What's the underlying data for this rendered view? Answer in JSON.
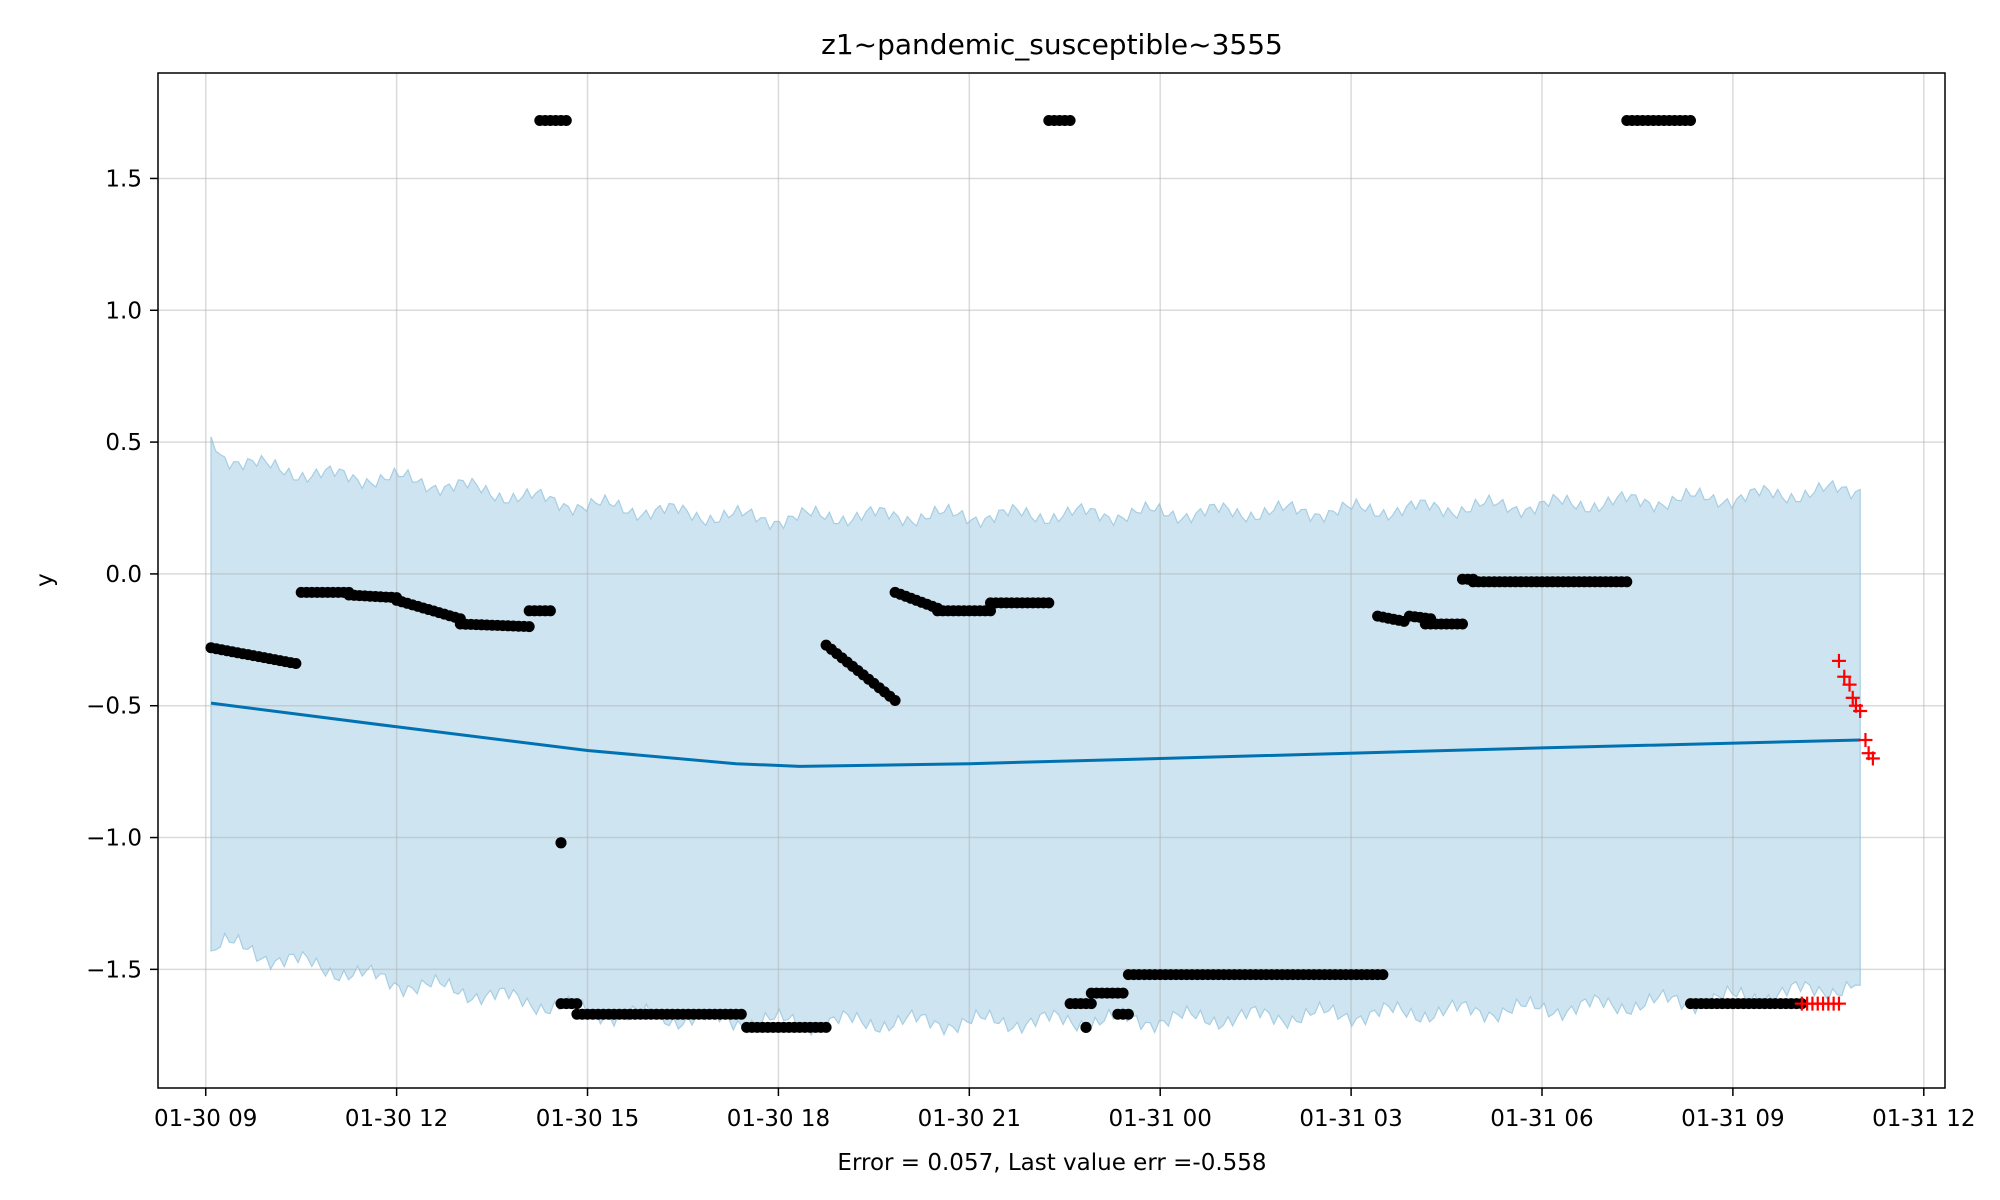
{
  "chart_data": {
    "type": "scatter",
    "title": "z1~pandemic_susceptible~3555",
    "xlabel": "Error = 0.057, Last value err =-0.558",
    "ylabel": "y",
    "xlim": [
      "2020-01-30 08:15",
      "2020-01-31 12:20"
    ],
    "ylim": [
      -1.95,
      1.9
    ],
    "grid": true,
    "x_ticks": [
      {
        "t": "2020-01-30 09:00",
        "label": "01-30 09"
      },
      {
        "t": "2020-01-30 12:00",
        "label": "01-30 12"
      },
      {
        "t": "2020-01-30 15:00",
        "label": "01-30 15"
      },
      {
        "t": "2020-01-30 18:00",
        "label": "01-30 18"
      },
      {
        "t": "2020-01-30 21:00",
        "label": "01-30 21"
      },
      {
        "t": "2020-01-31 00:00",
        "label": "01-31 00"
      },
      {
        "t": "2020-01-31 03:00",
        "label": "01-31 03"
      },
      {
        "t": "2020-01-31 06:00",
        "label": "01-31 06"
      },
      {
        "t": "2020-01-31 09:00",
        "label": "01-31 09"
      },
      {
        "t": "2020-01-31 12:00",
        "label": "01-31 12"
      }
    ],
    "y_ticks": [
      {
        "v": 1.5,
        "label": "1.5"
      },
      {
        "v": 1.0,
        "label": "1.0"
      },
      {
        "v": 0.5,
        "label": "0.5"
      },
      {
        "v": 0.0,
        "label": "0.0"
      },
      {
        "v": -0.5,
        "label": "−0.5"
      },
      {
        "v": -1.0,
        "label": "−1.0"
      },
      {
        "v": -1.5,
        "label": "−1.5"
      }
    ],
    "colors": {
      "forecast": "#0072B2",
      "band": "#A6CEE3",
      "observed": "#000000",
      "test": "#FF0000"
    },
    "forecast": {
      "name": "yhat",
      "points": [
        [
          "2020-01-30 09:05",
          -0.49
        ],
        [
          "2020-01-30 12:00",
          -0.58
        ],
        [
          "2020-01-30 15:00",
          -0.67
        ],
        [
          "2020-01-30 17:20",
          -0.72
        ],
        [
          "2020-01-30 18:20",
          -0.73
        ],
        [
          "2020-01-30 21:00",
          -0.72
        ],
        [
          "2020-01-31 00:00",
          -0.7
        ],
        [
          "2020-01-31 06:00",
          -0.66
        ],
        [
          "2020-01-31 11:00",
          -0.63
        ]
      ]
    },
    "band": {
      "upper": [
        [
          "2020-01-30 09:05",
          0.52
        ],
        [
          "2020-01-30 09:15",
          0.45
        ],
        [
          "2020-01-30 10:00",
          0.4
        ],
        [
          "2020-01-30 11:00",
          0.37
        ],
        [
          "2020-01-30 12:00",
          0.36
        ],
        [
          "2020-01-30 13:00",
          0.33
        ],
        [
          "2020-01-30 14:00",
          0.29
        ],
        [
          "2020-01-30 15:00",
          0.26
        ],
        [
          "2020-01-30 16:00",
          0.24
        ],
        [
          "2020-01-30 17:00",
          0.22
        ],
        [
          "2020-01-30 18:00",
          0.21
        ],
        [
          "2020-01-30 19:00",
          0.22
        ],
        [
          "2020-01-30 21:00",
          0.22
        ],
        [
          "2020-01-31 00:00",
          0.23
        ],
        [
          "2020-01-31 03:00",
          0.24
        ],
        [
          "2020-01-31 06:00",
          0.26
        ],
        [
          "2020-01-31 09:00",
          0.29
        ],
        [
          "2020-01-31 11:00",
          0.32
        ]
      ],
      "lower": [
        [
          "2020-01-30 09:05",
          -1.43
        ],
        [
          "2020-01-30 09:15",
          -1.4
        ],
        [
          "2020-01-30 10:00",
          -1.45
        ],
        [
          "2020-01-30 11:00",
          -1.5
        ],
        [
          "2020-01-30 12:00",
          -1.55
        ],
        [
          "2020-01-30 13:00",
          -1.58
        ],
        [
          "2020-01-30 14:00",
          -1.62
        ],
        [
          "2020-01-30 15:00",
          -1.66
        ],
        [
          "2020-01-30 16:00",
          -1.68
        ],
        [
          "2020-01-30 17:00",
          -1.69
        ],
        [
          "2020-01-30 18:00",
          -1.7
        ],
        [
          "2020-01-30 19:00",
          -1.7
        ],
        [
          "2020-01-30 21:00",
          -1.7
        ],
        [
          "2020-01-31 00:00",
          -1.69
        ],
        [
          "2020-01-31 03:00",
          -1.67
        ],
        [
          "2020-01-31 06:00",
          -1.65
        ],
        [
          "2020-01-31 09:00",
          -1.61
        ],
        [
          "2020-01-31 11:00",
          -1.56
        ]
      ]
    },
    "observed_segments": [
      {
        "from": "2020-01-30 09:05",
        "to": "2020-01-30 10:25",
        "y_start": -0.28,
        "y_end": -0.34
      },
      {
        "from": "2020-01-30 10:30",
        "to": "2020-01-30 11:15",
        "y_start": -0.07,
        "y_end": -0.07
      },
      {
        "from": "2020-01-30 11:15",
        "to": "2020-01-30 12:00",
        "y_start": -0.08,
        "y_end": -0.09
      },
      {
        "from": "2020-01-30 12:00",
        "to": "2020-01-30 13:00",
        "y_start": -0.1,
        "y_end": -0.17
      },
      {
        "from": "2020-01-30 13:00",
        "to": "2020-01-30 14:05",
        "y_start": -0.19,
        "y_end": -0.2
      },
      {
        "from": "2020-01-30 14:05",
        "to": "2020-01-30 14:25",
        "y_start": -0.14,
        "y_end": -0.14
      },
      {
        "from": "2020-01-30 14:15",
        "to": "2020-01-30 14:40",
        "y_start": 1.72,
        "y_end": 1.72
      },
      {
        "from": "2020-01-30 14:35",
        "to": "2020-01-30 14:35",
        "y_start": -1.02,
        "y_end": -1.02
      },
      {
        "from": "2020-01-30 14:35",
        "to": "2020-01-30 14:50",
        "y_start": -1.63,
        "y_end": -1.63
      },
      {
        "from": "2020-01-30 14:50",
        "to": "2020-01-30 17:25",
        "y_start": -1.67,
        "y_end": -1.67
      },
      {
        "from": "2020-01-30 17:30",
        "to": "2020-01-30 18:45",
        "y_start": -1.72,
        "y_end": -1.72
      },
      {
        "from": "2020-01-30 18:45",
        "to": "2020-01-30 19:50",
        "y_start": -0.27,
        "y_end": -0.48
      },
      {
        "from": "2020-01-30 19:50",
        "to": "2020-01-30 20:30",
        "y_start": -0.07,
        "y_end": -0.13
      },
      {
        "from": "2020-01-30 20:30",
        "to": "2020-01-30 21:20",
        "y_start": -0.14,
        "y_end": -0.14
      },
      {
        "from": "2020-01-30 21:20",
        "to": "2020-01-30 22:15",
        "y_start": -0.11,
        "y_end": -0.11
      },
      {
        "from": "2020-01-30 22:15",
        "to": "2020-01-30 22:35",
        "y_start": 1.72,
        "y_end": 1.72
      },
      {
        "from": "2020-01-30 22:35",
        "to": "2020-01-30 22:55",
        "y_start": -1.63,
        "y_end": -1.63
      },
      {
        "from": "2020-01-30 22:50",
        "to": "2020-01-30 22:50",
        "y_start": -1.72,
        "y_end": -1.72
      },
      {
        "from": "2020-01-30 22:55",
        "to": "2020-01-30 23:25",
        "y_start": -1.59,
        "y_end": -1.59
      },
      {
        "from": "2020-01-30 23:20",
        "to": "2020-01-30 23:30",
        "y_start": -1.67,
        "y_end": -1.67
      },
      {
        "from": "2020-01-30 23:30",
        "to": "2020-01-31 03:30",
        "y_start": -1.52,
        "y_end": -1.52
      },
      {
        "from": "2020-01-31 03:25",
        "to": "2020-01-31 03:50",
        "y_start": -0.16,
        "y_end": -0.18
      },
      {
        "from": "2020-01-31 03:55",
        "to": "2020-01-31 04:15",
        "y_start": -0.16,
        "y_end": -0.17
      },
      {
        "from": "2020-01-31 04:10",
        "to": "2020-01-31 04:45",
        "y_start": -0.19,
        "y_end": -0.19
      },
      {
        "from": "2020-01-31 04:45",
        "to": "2020-01-31 04:55",
        "y_start": -0.02,
        "y_end": -0.02
      },
      {
        "from": "2020-01-31 04:55",
        "to": "2020-01-31 07:20",
        "y_start": -0.03,
        "y_end": -0.03
      },
      {
        "from": "2020-01-31 07:20",
        "to": "2020-01-31 08:20",
        "y_start": 1.72,
        "y_end": 1.72
      },
      {
        "from": "2020-01-31 08:20",
        "to": "2020-01-31 10:05",
        "y_start": -1.63,
        "y_end": -1.63
      }
    ],
    "test_points": [
      [
        "2020-01-31 10:05",
        -1.63
      ],
      [
        "2020-01-31 10:10",
        -1.63
      ],
      [
        "2020-01-31 10:15",
        -1.63
      ],
      [
        "2020-01-31 10:20",
        -1.63
      ],
      [
        "2020-01-31 10:25",
        -1.63
      ],
      [
        "2020-01-31 10:30",
        -1.63
      ],
      [
        "2020-01-31 10:35",
        -1.63
      ],
      [
        "2020-01-31 10:40",
        -1.63
      ],
      [
        "2020-01-31 10:40",
        -0.33
      ],
      [
        "2020-01-31 10:45",
        -0.39
      ],
      [
        "2020-01-31 10:50",
        -0.42
      ],
      [
        "2020-01-31 10:53",
        -0.47
      ],
      [
        "2020-01-31 10:56",
        -0.5
      ],
      [
        "2020-01-31 11:00",
        -0.52
      ],
      [
        "2020-01-31 11:05",
        -0.63
      ],
      [
        "2020-01-31 11:08",
        -0.68
      ],
      [
        "2020-01-31 11:12",
        -0.7
      ]
    ]
  }
}
